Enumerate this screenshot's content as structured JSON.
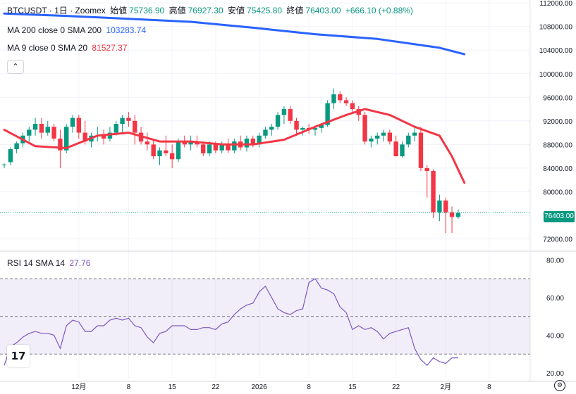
{
  "legend": {
    "symbol": "BTCUSDT · 1日 · Zoomex",
    "open_label": "始値",
    "open_value": "75736.90",
    "high_label": "高値",
    "high_value": "76927.30",
    "low_label": "安値",
    "low_value": "75425.80",
    "close_label": "終値",
    "close_value": "76403.00",
    "change": "+666.10 (+0.88%)",
    "ma200_label": "MA 200 close 0 SMA 200",
    "ma200_value": "103283.74",
    "ma9_label": "MA 9 close 0 SMA 20",
    "ma9_value": "81527.37",
    "rsi_label": "RSI 14 SMA 14",
    "rsi_value": "27.76"
  },
  "collapse_icon": "chevron-up-icon",
  "logo_text": "17",
  "current_price_label": "76403.00",
  "colors": {
    "up": "#089981",
    "down": "#f23645",
    "ma200": "#2962ff",
    "ma9": "#f23645",
    "rsi": "#7e57c2"
  },
  "chart_data": [
    {
      "type": "candlestick",
      "title": "BTCUSDT · 1日 · Zoomex",
      "price_axis_ticks": [
        "112000.00",
        "108000.00",
        "104000.00",
        "100000.00",
        "96000.00",
        "92000.00",
        "88000.00",
        "84000.00",
        "80000.00",
        "76000.00",
        "72000.00"
      ],
      "price_tick_values": [
        112000,
        108000,
        104000,
        100000,
        96000,
        92000,
        88000,
        84000,
        80000,
        76000,
        72000
      ],
      "ylim": [
        70500,
        112500
      ],
      "x_axis_labels": [
        "12月",
        "8",
        "15",
        "22",
        "2026",
        "8",
        "15",
        "22",
        "2月",
        "8"
      ],
      "x_axis_label_index": [
        12,
        20,
        27,
        34,
        41,
        49,
        56,
        63,
        71,
        78
      ],
      "candles": [
        [
          84500,
          84800,
          84000,
          84600
        ],
        [
          85000,
          87500,
          84500,
          87200
        ],
        [
          87200,
          88500,
          86500,
          88200
        ],
        [
          88200,
          90000,
          87500,
          89500
        ],
        [
          89500,
          91000,
          88500,
          90500
        ],
        [
          90500,
          92500,
          89500,
          91500
        ],
        [
          91500,
          92500,
          89000,
          90000
        ],
        [
          90000,
          92000,
          89500,
          91000
        ],
        [
          91000,
          91500,
          88500,
          89000
        ],
        [
          89000,
          90500,
          84000,
          87000
        ],
        [
          87000,
          91500,
          86500,
          91000
        ],
        [
          91000,
          93000,
          90000,
          92500
        ],
        [
          92500,
          93000,
          89000,
          90000
        ],
        [
          90000,
          92000,
          88000,
          88500
        ],
        [
          88500,
          90000,
          87500,
          89500
        ],
        [
          89500,
          91000,
          88500,
          89500
        ],
        [
          89500,
          90500,
          88000,
          89000
        ],
        [
          89000,
          91000,
          88500,
          90000
        ],
        [
          90000,
          92000,
          89500,
          91500
        ],
        [
          91500,
          93000,
          90000,
          92500
        ],
        [
          92500,
          93500,
          91000,
          92000
        ],
        [
          92000,
          93000,
          88000,
          90000
        ],
        [
          90000,
          91000,
          88000,
          88500
        ],
        [
          88500,
          90000,
          87000,
          88000
        ],
        [
          88000,
          89000,
          85500,
          86000
        ],
        [
          86000,
          87500,
          84500,
          87000
        ],
        [
          87000,
          89500,
          86000,
          86500
        ],
        [
          86500,
          88000,
          84000,
          85500
        ],
        [
          85500,
          89000,
          85000,
          88500
        ],
        [
          88500,
          89500,
          87500,
          88000
        ],
        [
          88000,
          89500,
          87000,
          88500
        ],
        [
          88500,
          89500,
          87500,
          88000
        ],
        [
          88000,
          88500,
          86000,
          86500
        ],
        [
          86500,
          88500,
          86000,
          88000
        ],
        [
          88000,
          88500,
          86500,
          87000
        ],
        [
          87000,
          88500,
          86500,
          88000
        ],
        [
          88000,
          89000,
          86500,
          87000
        ],
        [
          87000,
          89000,
          86500,
          88500
        ],
        [
          88500,
          89500,
          87000,
          87500
        ],
        [
          87500,
          89500,
          86800,
          89000
        ],
        [
          89000,
          89500,
          87500,
          88000
        ],
        [
          88000,
          90000,
          87500,
          89500
        ],
        [
          89500,
          91000,
          89000,
          90500
        ],
        [
          90500,
          91500,
          89500,
          91000
        ],
        [
          91000,
          93500,
          90500,
          93000
        ],
        [
          93000,
          94500,
          91500,
          94000
        ],
        [
          94000,
          94500,
          91500,
          92000
        ],
        [
          92000,
          92500,
          89500,
          90500
        ],
        [
          90500,
          91000,
          89500,
          90800
        ],
        [
          90800,
          91500,
          89800,
          90500
        ],
        [
          90500,
          91000,
          89500,
          90800
        ],
        [
          90800,
          91500,
          90000,
          91300
        ],
        [
          91300,
          95500,
          91000,
          95000
        ],
        [
          95000,
          97500,
          94000,
          96500
        ],
        [
          96500,
          97000,
          95000,
          95500
        ],
        [
          95500,
          96000,
          94500,
          95000
        ],
        [
          95000,
          95500,
          93500,
          94000
        ],
        [
          94000,
          94500,
          92000,
          93000
        ],
        [
          93000,
          93500,
          88000,
          88500
        ],
        [
          88500,
          89500,
          87500,
          89000
        ],
        [
          89000,
          90000,
          88000,
          89500
        ],
        [
          89500,
          90500,
          88500,
          90000
        ],
        [
          90000,
          90500,
          88000,
          88500
        ],
        [
          88500,
          89500,
          86000,
          86000
        ],
        [
          86000,
          88500,
          85800,
          88000
        ],
        [
          88000,
          90000,
          87500,
          89500
        ],
        [
          89500,
          91000,
          88500,
          90000
        ],
        [
          90000,
          91000,
          83500,
          84000
        ],
        [
          84000,
          84500,
          79000,
          83500
        ],
        [
          83500,
          83800,
          75500,
          76500
        ],
        [
          76500,
          79500,
          75000,
          78500
        ],
        [
          78500,
          79000,
          73000,
          76500
        ],
        [
          76500,
          77500,
          73000,
          75700
        ],
        [
          75700,
          77000,
          75400,
          76400
        ]
      ],
      "ma200_points": [
        [
          0,
          110200
        ],
        [
          10,
          109800
        ],
        [
          20,
          109300
        ],
        [
          30,
          108800
        ],
        [
          40,
          107800
        ],
        [
          50,
          106700
        ],
        [
          60,
          105900
        ],
        [
          70,
          104400
        ],
        [
          74,
          103300
        ]
      ],
      "ma9_points": [
        [
          0,
          90500
        ],
        [
          5,
          87700
        ],
        [
          10,
          87400
        ],
        [
          15,
          89500
        ],
        [
          20,
          90000
        ],
        [
          25,
          88500
        ],
        [
          30,
          88500
        ],
        [
          35,
          88000
        ],
        [
          40,
          88000
        ],
        [
          45,
          88800
        ],
        [
          50,
          91000
        ],
        [
          55,
          93000
        ],
        [
          58,
          94000
        ],
        [
          62,
          93000
        ],
        [
          66,
          91000
        ],
        [
          70,
          89500
        ],
        [
          72,
          86000
        ],
        [
          74,
          81500
        ]
      ],
      "rsi": {
        "ylim": [
          17,
          82
        ],
        "axis_ticks": [
          "80.00",
          "60.00",
          "40.00",
          "20.00"
        ],
        "axis_values": [
          80,
          60,
          40,
          20
        ],
        "band": [
          30,
          70
        ],
        "midline": 50,
        "points": [
          [
            0,
            24
          ],
          [
            1,
            34
          ],
          [
            2,
            36
          ],
          [
            3,
            39
          ],
          [
            4,
            41
          ],
          [
            5,
            42
          ],
          [
            6,
            41
          ],
          [
            7,
            41
          ],
          [
            8,
            40
          ],
          [
            9,
            33
          ],
          [
            10,
            45
          ],
          [
            11,
            48
          ],
          [
            12,
            47
          ],
          [
            13,
            42
          ],
          [
            14,
            42
          ],
          [
            15,
            45
          ],
          [
            16,
            45
          ],
          [
            17,
            48
          ],
          [
            18,
            49
          ],
          [
            19,
            48
          ],
          [
            20,
            49
          ],
          [
            21,
            45
          ],
          [
            22,
            44
          ],
          [
            23,
            39
          ],
          [
            24,
            36
          ],
          [
            25,
            41
          ],
          [
            26,
            42
          ],
          [
            27,
            45
          ],
          [
            28,
            45
          ],
          [
            29,
            45
          ],
          [
            30,
            43
          ],
          [
            31,
            43
          ],
          [
            32,
            44
          ],
          [
            33,
            44
          ],
          [
            34,
            43
          ],
          [
            35,
            46
          ],
          [
            36,
            47
          ],
          [
            37,
            51
          ],
          [
            38,
            54
          ],
          [
            39,
            56
          ],
          [
            40,
            57
          ],
          [
            41,
            63
          ],
          [
            42,
            66
          ],
          [
            43,
            60
          ],
          [
            44,
            54
          ],
          [
            45,
            52
          ],
          [
            46,
            51
          ],
          [
            47,
            53
          ],
          [
            48,
            54
          ],
          [
            49,
            68
          ],
          [
            50,
            70
          ],
          [
            51,
            65
          ],
          [
            52,
            64
          ],
          [
            53,
            62
          ],
          [
            54,
            55
          ],
          [
            55,
            52
          ],
          [
            56,
            43
          ],
          [
            57,
            45
          ],
          [
            58,
            43
          ],
          [
            59,
            44
          ],
          [
            60,
            42
          ],
          [
            61,
            38
          ],
          [
            62,
            41
          ],
          [
            63,
            42
          ],
          [
            64,
            43
          ],
          [
            65,
            44
          ],
          [
            66,
            33
          ],
          [
            67,
            27
          ],
          [
            68,
            24
          ],
          [
            69,
            28
          ],
          [
            70,
            26
          ],
          [
            71,
            25
          ],
          [
            72,
            28
          ],
          [
            73,
            28
          ]
        ],
        "last_value": 27.76
      }
    }
  ]
}
